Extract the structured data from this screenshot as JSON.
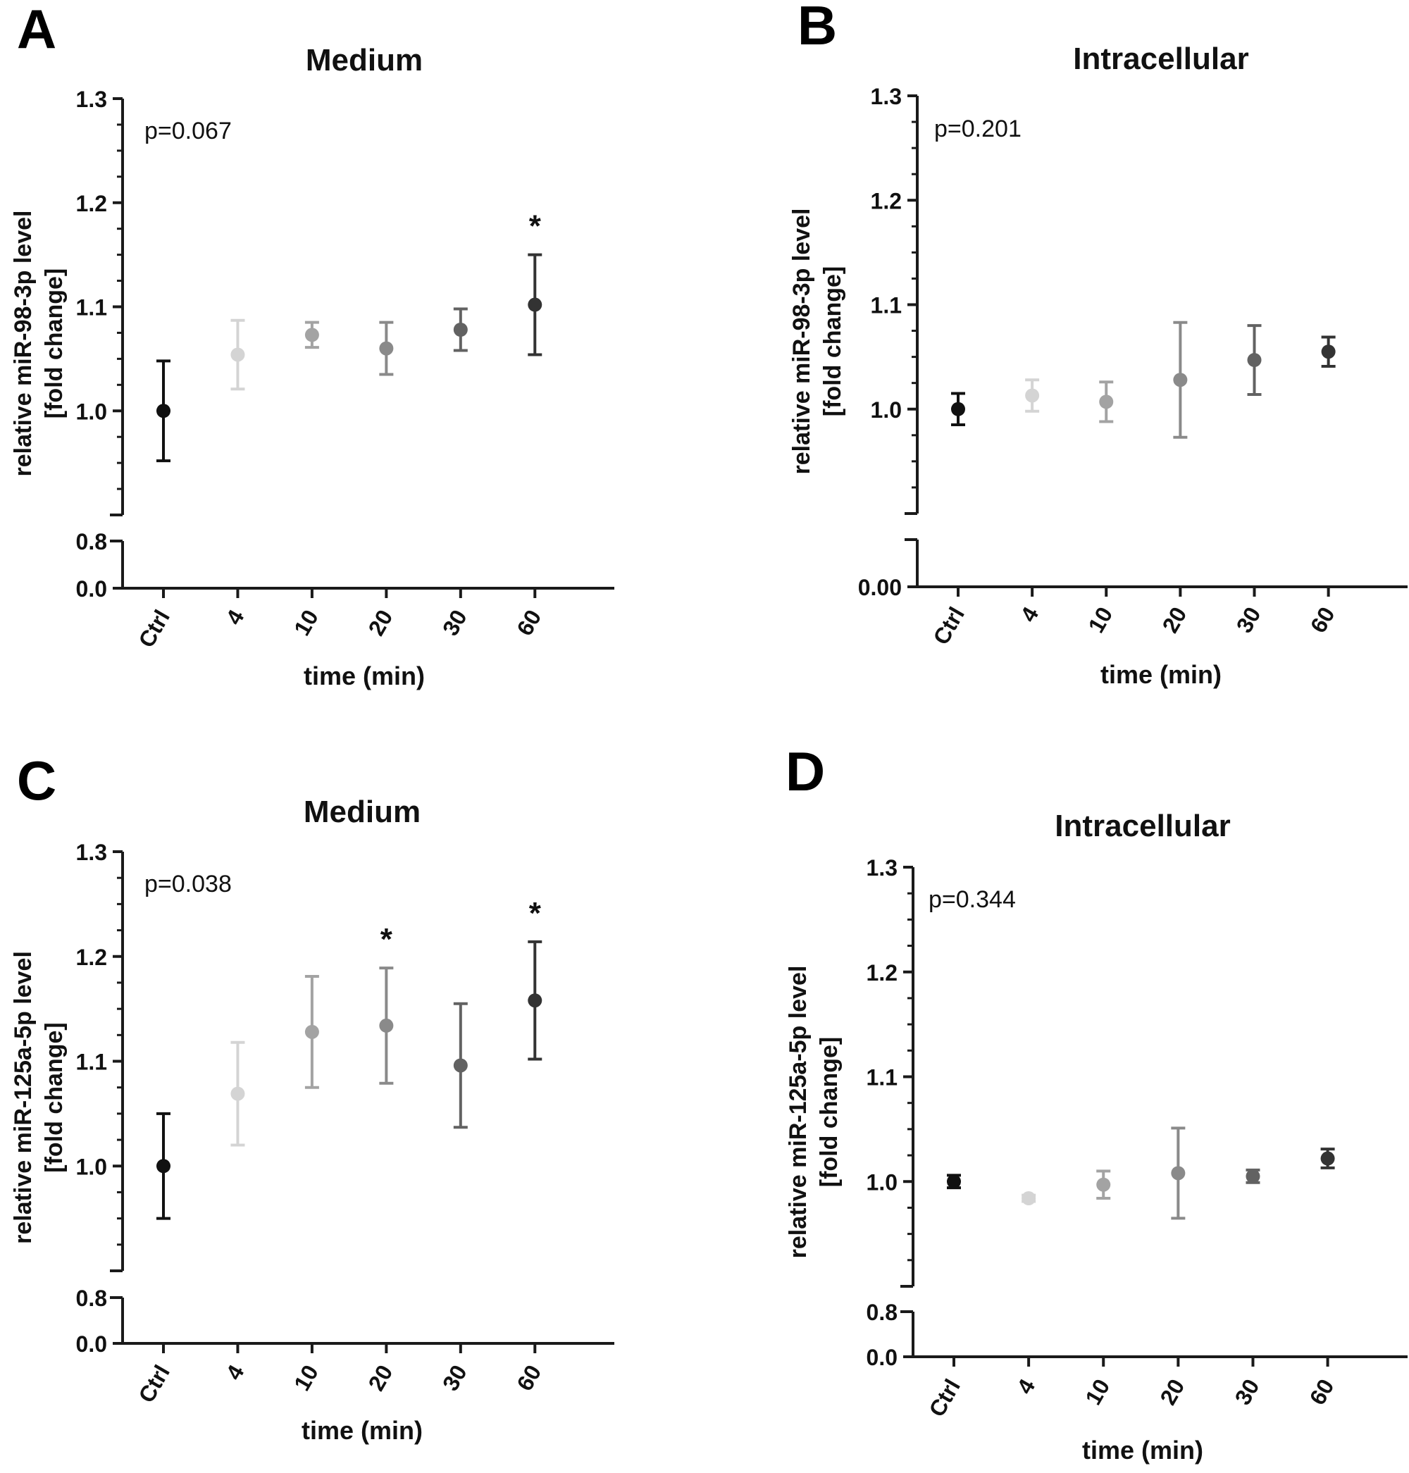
{
  "colors": {
    "axis": "#1a1a1a",
    "text": "#111111",
    "series_colors": [
      "#111111",
      "#d4d4d4",
      "#a3a3a3",
      "#8a8a8a",
      "#626262",
      "#333333"
    ]
  },
  "chart_data": [
    {
      "panel_letter": "A",
      "type": "scatter",
      "title": "Medium",
      "xlabel": "time (min)",
      "ylabel": [
        "relative miR-98-3p level",
        "[fold change]"
      ],
      "categories": [
        "Ctrl",
        "4",
        "10",
        "20",
        "30",
        "60"
      ],
      "values": [
        1.0,
        1.054,
        1.073,
        1.06,
        1.078,
        1.102
      ],
      "errors": [
        0.048,
        0.033,
        0.012,
        0.025,
        0.02,
        0.048
      ],
      "significance": [
        "",
        "",
        "",
        "",
        "",
        "*"
      ],
      "pvalue": "p=0.067",
      "upper_ylim": [
        0.9,
        1.3
      ],
      "upper_ticks": [
        "1.0",
        "1.1",
        "1.2",
        "1.3"
      ],
      "lower_ticks": [
        "0.0",
        "0.8"
      ],
      "grid": false,
      "error_bars": true
    },
    {
      "panel_letter": "B",
      "type": "scatter",
      "title": "Intracellular",
      "xlabel": "time (min)",
      "ylabel": [
        "relative miR-98-3p level",
        "[fold change]"
      ],
      "categories": [
        "Ctrl",
        "4",
        "10",
        "20",
        "30",
        "60"
      ],
      "values": [
        1.0,
        1.013,
        1.007,
        1.028,
        1.047,
        1.055
      ],
      "errors": [
        0.015,
        0.015,
        0.019,
        0.055,
        0.033,
        0.014
      ],
      "significance": [
        "",
        "",
        "",
        "",
        "",
        ""
      ],
      "pvalue": "p=0.201",
      "upper_ylim": [
        0.9,
        1.3
      ],
      "upper_ticks": [
        "1.0",
        "1.1",
        "1.2",
        "1.3"
      ],
      "lower_ticks": [
        "0.00"
      ],
      "grid": false,
      "error_bars": true
    },
    {
      "panel_letter": "C",
      "type": "scatter",
      "title": "Medium",
      "xlabel": "time (min)",
      "ylabel": [
        "relative miR-125a-5p level",
        "[fold change]"
      ],
      "categories": [
        "Ctrl",
        "4",
        "10",
        "20",
        "30",
        "60"
      ],
      "values": [
        1.0,
        1.069,
        1.128,
        1.134,
        1.096,
        1.158
      ],
      "errors": [
        0.05,
        0.049,
        0.053,
        0.055,
        0.059,
        0.056
      ],
      "significance": [
        "",
        "",
        "",
        "*",
        "",
        "*"
      ],
      "pvalue": "p=0.038",
      "upper_ylim": [
        0.9,
        1.3
      ],
      "upper_ticks": [
        "1.0",
        "1.1",
        "1.2",
        "1.3"
      ],
      "lower_ticks": [
        "0.0",
        "0.8"
      ],
      "grid": false,
      "error_bars": true
    },
    {
      "panel_letter": "D",
      "type": "scatter",
      "title": "Intracellular",
      "xlabel": "time (min)",
      "ylabel": [
        "relative miR-125a-5p level",
        "[fold change]"
      ],
      "categories": [
        "Ctrl",
        "4",
        "10",
        "20",
        "30",
        "60"
      ],
      "values": [
        1.0,
        0.984,
        0.997,
        1.008,
        1.005,
        1.022
      ],
      "errors": [
        0.006,
        0.003,
        0.013,
        0.043,
        0.006,
        0.009
      ],
      "significance": [
        "",
        "",
        "",
        "",
        "",
        ""
      ],
      "pvalue": "p=0.344",
      "upper_ylim": [
        0.9,
        1.3
      ],
      "upper_ticks": [
        "1.0",
        "1.1",
        "1.2",
        "1.3"
      ],
      "lower_ticks": [
        "0.0",
        "0.8"
      ],
      "grid": false,
      "error_bars": true
    }
  ]
}
